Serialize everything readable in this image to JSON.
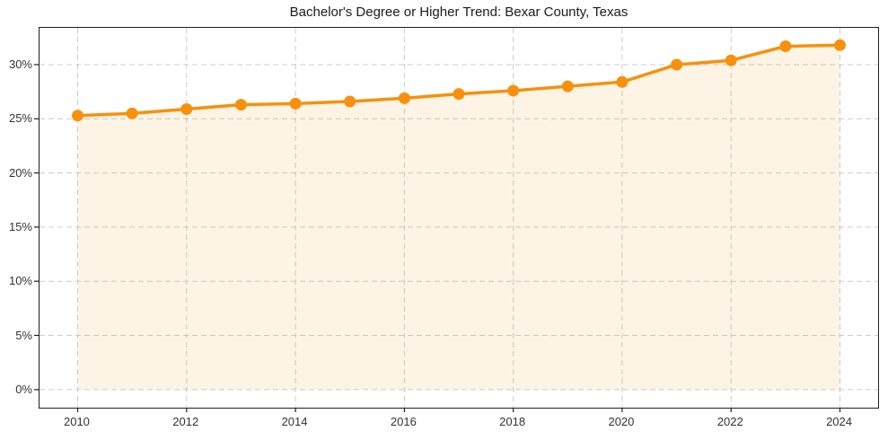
{
  "chart_data": {
    "type": "line",
    "title": "Bachelor's Degree or Higher Trend: Bexar County, Texas",
    "series": [
      {
        "name": "Bachelor's degree or higher (%)",
        "x": [
          2010,
          2011,
          2012,
          2013,
          2014,
          2015,
          2016,
          2017,
          2018,
          2019,
          2020,
          2021,
          2022,
          2023,
          2024
        ],
        "values": [
          25.3,
          25.5,
          25.9,
          26.3,
          26.4,
          26.6,
          26.9,
          27.3,
          27.6,
          28.0,
          28.4,
          30.0,
          30.4,
          31.7,
          31.8
        ]
      }
    ],
    "xlabel": "",
    "ylabel": "",
    "x_ticks": [
      2010,
      2012,
      2014,
      2016,
      2018,
      2020,
      2022,
      2024
    ],
    "x_tick_labels": [
      "2010",
      "2012",
      "2014",
      "2016",
      "2018",
      "2020",
      "2022",
      "2024"
    ],
    "y_ticks": [
      0,
      5,
      10,
      15,
      20,
      25,
      30
    ],
    "y_tick_labels": [
      "0%",
      "5%",
      "10%",
      "15%",
      "20%",
      "25%",
      "30%"
    ],
    "xlim": [
      2009.3,
      2024.7
    ],
    "ylim": [
      -1.67,
      33.4
    ],
    "grid": true,
    "grid_style": "dashed",
    "legend": "none",
    "area_fill": true,
    "area_baseline": 0,
    "marker": "circle",
    "colors": {
      "line": "#F7910D",
      "marker": "#F7910D",
      "area_fill": "rgba(247, 145, 13, 0.10)",
      "grid": "#CCCCCC",
      "spine": "#1F1F1F",
      "tick_label": "#333333",
      "title": "#1A1A1A"
    }
  }
}
